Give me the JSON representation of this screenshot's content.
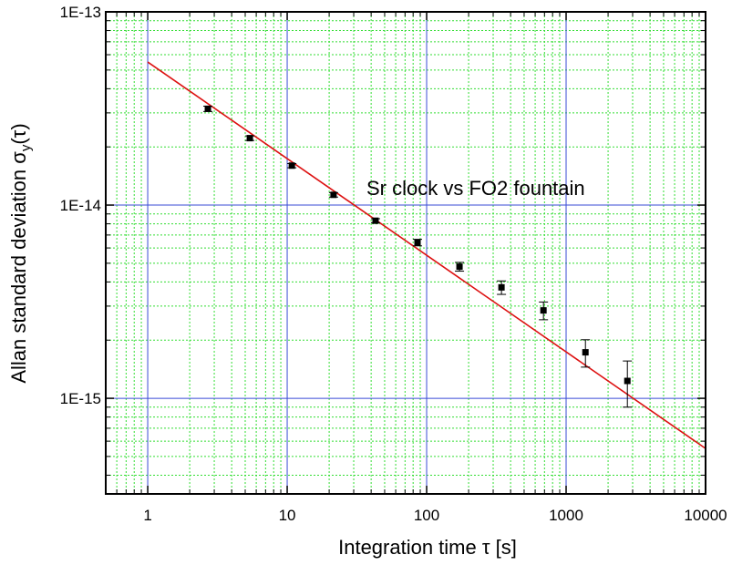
{
  "chart_data": {
    "type": "scatter",
    "title": "",
    "xlabel": "Integration time τ [s]",
    "ylabel_main": "Allan standard deviation σ",
    "ylabel_sub": "y",
    "ylabel_tail": "(τ)",
    "annotation": "Sr clock vs FO2 fountain",
    "xscale": "log",
    "yscale": "log",
    "xlim": [
      0.5,
      10000
    ],
    "ylim": [
      3.2e-16,
      1e-13
    ],
    "x_tick_labels": [
      {
        "value": 1,
        "label": "1"
      },
      {
        "value": 10,
        "label": "10"
      },
      {
        "value": 100,
        "label": "100"
      },
      {
        "value": 1000,
        "label": "1000"
      },
      {
        "value": 10000,
        "label": "10000"
      }
    ],
    "y_tick_labels": [
      {
        "value": 1e-15,
        "label": "1E-15"
      },
      {
        "value": 1e-14,
        "label": "1E-14"
      },
      {
        "value": 1e-13,
        "label": "1E-13"
      }
    ],
    "grid": true,
    "major_grid_color": "#3a4bd6",
    "minor_grid_color": "#33dd33",
    "fit_line_color": "#dd1111",
    "marker_color": "#000000",
    "points": [
      {
        "x": 2.7,
        "y": 3.15e-14,
        "err": 1e-15
      },
      {
        "x": 5.4,
        "y": 2.22e-14,
        "err": 6e-16
      },
      {
        "x": 10.8,
        "y": 1.6e-14,
        "err": 4e-16
      },
      {
        "x": 21.5,
        "y": 1.13e-14,
        "err": 3e-16
      },
      {
        "x": 43,
        "y": 8.3e-15,
        "err": 2e-16
      },
      {
        "x": 86,
        "y": 6.4e-15,
        "err": 2.5e-16
      },
      {
        "x": 172,
        "y": 4.8e-15,
        "err": 2.5e-16
      },
      {
        "x": 344,
        "y": 3.75e-15,
        "err": 3e-16
      },
      {
        "x": 688,
        "y": 2.85e-15,
        "err": 3e-16
      },
      {
        "x": 1376,
        "y": 1.73e-15,
        "err": 2.8e-16
      },
      {
        "x": 2750,
        "y": 1.23e-15,
        "err": 3.3e-16
      }
    ],
    "fit_line": {
      "x": [
        1,
        10000
      ],
      "y": [
        5.5e-14,
        5.5e-16
      ]
    }
  }
}
